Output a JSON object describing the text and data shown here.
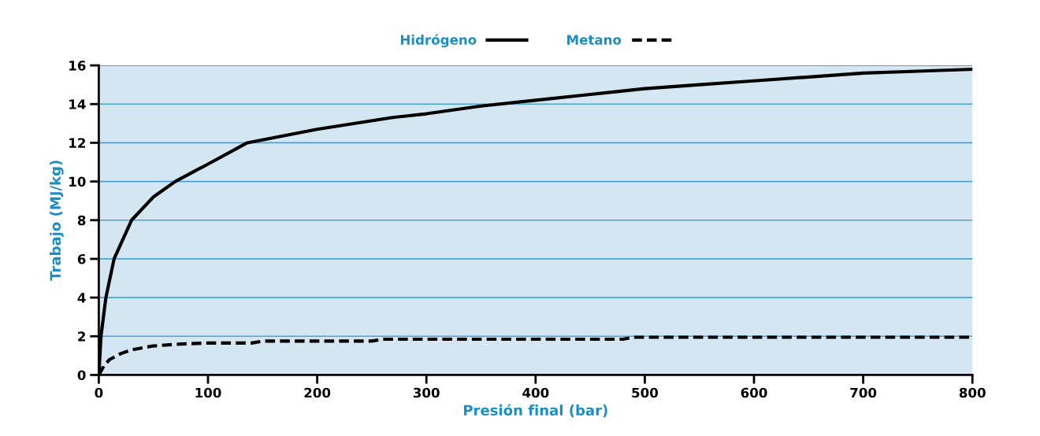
{
  "chart_data": {
    "type": "line",
    "xlabel": "Presión final (bar)",
    "ylabel": "Trabajo (MJ/kg)",
    "xlim": [
      0,
      800
    ],
    "xticks": [
      0,
      100,
      200,
      300,
      400,
      500,
      600,
      700,
      800
    ],
    "ylim": [
      0,
      16
    ],
    "yticks": [
      0,
      2,
      4,
      6,
      8,
      10,
      12,
      14,
      16
    ],
    "grid": "y",
    "legend": "top",
    "marker": "none",
    "series": [
      {
        "name": "Hidrógeno",
        "color": "#000000",
        "line_style": "solid",
        "x": [
          0,
          2,
          6.5,
          14,
          30,
          50,
          70,
          100,
          136,
          200,
          268,
          300,
          350,
          400,
          450,
          500,
          550,
          600,
          650,
          700,
          750,
          800
        ],
        "values": [
          0,
          2,
          4,
          6,
          8,
          9.2,
          10,
          10.9,
          12,
          12.7,
          13.3,
          13.5,
          13.9,
          14.2,
          14.5,
          14.8,
          15.0,
          15.2,
          15.4,
          15.6,
          15.7,
          15.8
        ]
      },
      {
        "name": "Metano",
        "color": "#000000",
        "line_style": "dashed",
        "x": [
          0,
          5,
          10,
          20,
          30,
          50,
          75,
          100,
          140,
          150,
          250,
          260,
          300,
          480,
          490,
          800
        ],
        "values": [
          0,
          0.5,
          0.8,
          1.1,
          1.3,
          1.5,
          1.6,
          1.65,
          1.65,
          1.75,
          1.75,
          1.85,
          1.85,
          1.85,
          1.95,
          1.95
        ]
      }
    ]
  }
}
